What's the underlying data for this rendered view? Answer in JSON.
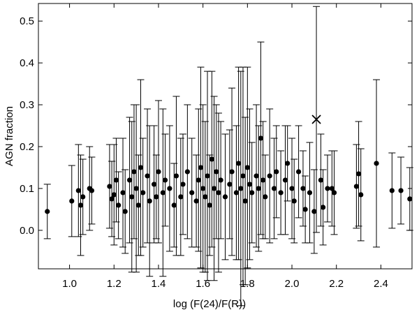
{
  "chart_data": {
    "type": "scatter",
    "xlabel": "log (F(24)/F(R))",
    "ylabel": "AGN fraction",
    "xlim": [
      0.86,
      2.54
    ],
    "ylim": [
      -0.092,
      0.542
    ],
    "xticks": [
      {
        "value": 1.0,
        "label": "1.0"
      },
      1.2,
      1.4,
      1.6,
      1.8,
      {
        "value": 2.0,
        "label": "2.0"
      },
      2.2,
      2.4
    ],
    "yticks": [
      {
        "value": 0,
        "label": "0.0"
      },
      0.1,
      0.2,
      0.3,
      0.4,
      0.5
    ],
    "color": "#000000",
    "x": [
      0.9,
      1.01,
      1.04,
      1.05,
      1.06,
      1.09,
      1.1,
      1.18,
      1.19,
      1.2,
      1.21,
      1.22,
      1.24,
      1.25,
      1.27,
      1.28,
      1.29,
      1.3,
      1.31,
      1.32,
      1.33,
      1.35,
      1.36,
      1.38,
      1.39,
      1.4,
      1.42,
      1.43,
      1.45,
      1.47,
      1.48,
      1.5,
      1.51,
      1.53,
      1.55,
      1.57,
      1.58,
      1.59,
      1.6,
      1.61,
      1.62,
      1.63,
      1.64,
      1.65,
      1.66,
      1.67,
      1.68,
      1.7,
      1.72,
      1.73,
      1.75,
      1.76,
      1.77,
      1.78,
      1.79,
      1.8,
      1.81,
      1.82,
      1.84,
      1.85,
      1.86,
      1.87,
      1.88,
      1.9,
      1.92,
      1.93,
      1.95,
      1.97,
      1.98,
      2.0,
      2.01,
      2.03,
      2.05,
      2.06,
      2.08,
      2.1,
      2.13,
      2.14,
      2.16,
      2.18,
      2.19,
      2.29,
      2.3,
      2.31,
      2.38,
      2.45,
      2.49,
      2.53
    ],
    "y": [
      0.045,
      0.07,
      0.095,
      0.06,
      0.08,
      0.1,
      0.095,
      0.105,
      0.075,
      0.085,
      0.12,
      0.06,
      0.09,
      0.045,
      0.12,
      0.08,
      0.14,
      0.1,
      0.06,
      0.15,
      0.09,
      0.13,
      0.07,
      0.11,
      0.08,
      0.14,
      0.09,
      0.12,
      0.1,
      0.06,
      0.13,
      0.08,
      0.11,
      0.14,
      0.09,
      0.07,
      0.12,
      0.15,
      0.1,
      0.08,
      0.13,
      0.06,
      0.17,
      0.1,
      0.14,
      0.09,
      0.12,
      0.08,
      0.11,
      0.14,
      0.09,
      0.16,
      0.1,
      0.13,
      0.07,
      0.15,
      0.11,
      0.09,
      0.13,
      0.1,
      0.22,
      0.12,
      0.08,
      0.13,
      0.1,
      0.14,
      0.09,
      0.12,
      0.16,
      0.1,
      0.07,
      0.14,
      0.1,
      0.05,
      0.09,
      0.045,
      0.12,
      0.055,
      0.1,
      0.1,
      0.09,
      0.105,
      0.135,
      0.085,
      0.16,
      0.095,
      0.095,
      0.075
    ],
    "yerr": [
      0.065,
      0.085,
      0.11,
      0.12,
      0.09,
      0.1,
      0.08,
      0.1,
      0.09,
      0.12,
      0.1,
      0.08,
      0.13,
      0.1,
      0.15,
      0.18,
      0.16,
      0.2,
      0.12,
      0.21,
      0.13,
      0.16,
      0.18,
      0.14,
      0.1,
      0.17,
      0.2,
      0.11,
      0.15,
      0.1,
      0.19,
      0.14,
      0.12,
      0.16,
      0.13,
      0.11,
      0.17,
      0.24,
      0.2,
      0.18,
      0.25,
      0.12,
      0.21,
      0.22,
      0.16,
      0.19,
      0.14,
      0.15,
      0.13,
      0.2,
      0.16,
      0.23,
      0.28,
      0.26,
      0.2,
      0.24,
      0.18,
      0.12,
      0.17,
      0.15,
      0.23,
      0.14,
      0.1,
      0.16,
      0.12,
      0.11,
      0.1,
      0.13,
      0.09,
      0.12,
      0.1,
      0.11,
      0.09,
      0.08,
      0.12,
      0.1,
      0.11,
      0.09,
      0.08,
      0.09,
      0.1,
      0.1,
      0.125,
      0.11,
      0.2,
      0.09,
      0.08,
      0.075
    ],
    "highlight": {
      "x": 2.11,
      "y": 0.265,
      "yerr": 0.27
    }
  }
}
